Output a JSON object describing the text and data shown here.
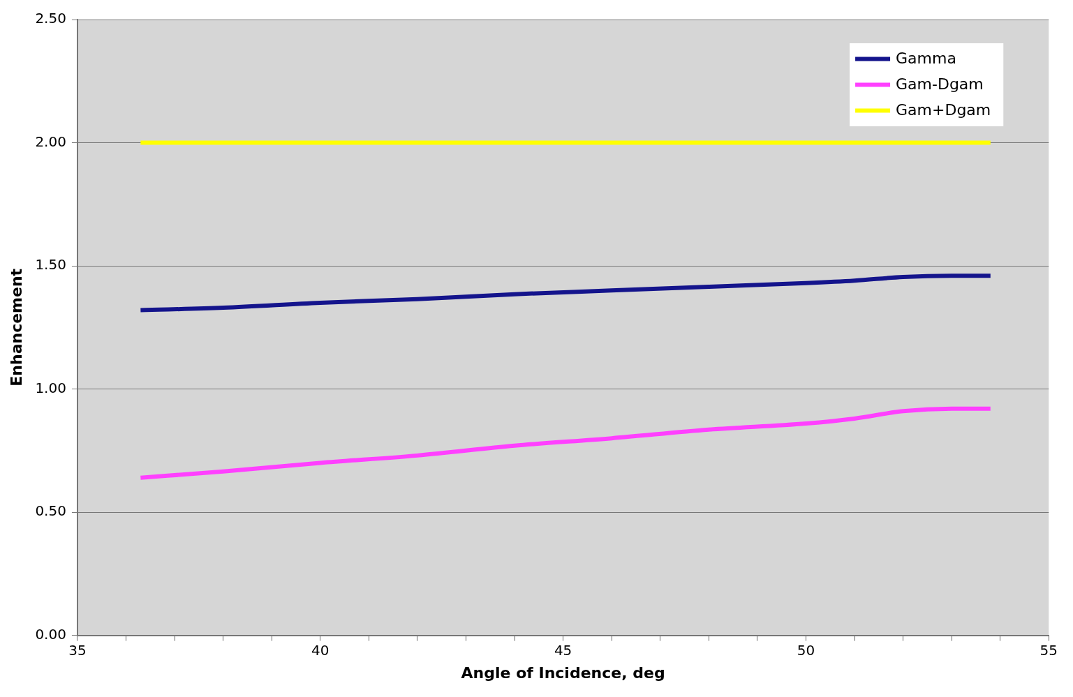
{
  "chart_data": {
    "type": "line",
    "xlabel": "Angle of Incidence, deg",
    "ylabel": "Enhancement",
    "xlim": [
      35,
      55
    ],
    "xticks": [
      35,
      {
        "value": 36,
        "label": null
      },
      {
        "value": 37,
        "label": null
      },
      {
        "value": 38,
        "label": null
      },
      {
        "value": 39,
        "label": null
      },
      40,
      {
        "value": 41,
        "label": null
      },
      {
        "value": 42,
        "label": null
      },
      {
        "value": 43,
        "label": null
      },
      {
        "value": 44,
        "label": null
      },
      45,
      {
        "value": 46,
        "label": null
      },
      {
        "value": 47,
        "label": null
      },
      {
        "value": 48,
        "label": null
      },
      {
        "value": 49,
        "label": null
      },
      50,
      {
        "value": 51,
        "label": null
      },
      {
        "value": 52,
        "label": null
      },
      {
        "value": 53,
        "label": null
      },
      {
        "value": 54,
        "label": null
      },
      55
    ],
    "ylim": [
      0,
      2.5
    ],
    "yticks": [
      {
        "value": 0,
        "label": "0.00"
      },
      {
        "value": 0.5,
        "label": "0.50"
      },
      {
        "value": 1,
        "label": "1.00"
      },
      {
        "value": 1.5,
        "label": "1.50"
      },
      {
        "value": 2,
        "label": "2.00"
      },
      {
        "value": 2.5,
        "label": "2.50"
      }
    ],
    "grid": "y",
    "legend": "top right",
    "marker": "none",
    "line_style": "solid",
    "x": [
      36.3,
      38,
      40,
      42,
      44,
      46,
      48,
      50,
      51,
      52,
      53,
      53.8
    ],
    "series": [
      {
        "name": "Gamma",
        "color": "#14148c",
        "values": [
          1.32,
          1.33,
          1.35,
          1.365,
          1.385,
          1.4,
          1.415,
          1.43,
          1.44,
          1.455,
          1.46,
          1.46
        ]
      },
      {
        "name": "Gam-Dgam",
        "color": "#ff40ff",
        "values": [
          0.64,
          0.665,
          0.7,
          0.73,
          0.77,
          0.8,
          0.835,
          0.86,
          0.88,
          0.91,
          0.92,
          0.92
        ]
      },
      {
        "name": "Gam+Dgam",
        "color": "#ffff00",
        "values": [
          2,
          2,
          2,
          2,
          2,
          2,
          2,
          2,
          2,
          2,
          2,
          2
        ]
      }
    ]
  }
}
